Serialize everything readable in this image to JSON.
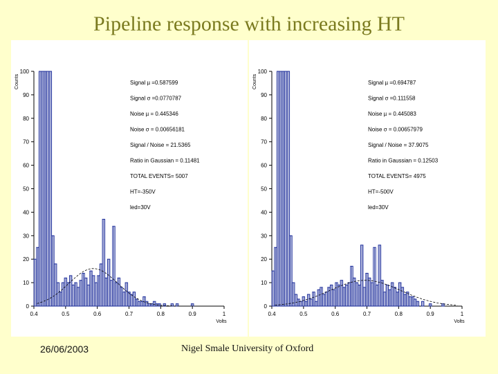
{
  "slide": {
    "title": "Pipeline response with increasing HT",
    "date": "26/06/2003",
    "author": "Nigel Smale University of Oxford"
  },
  "colors": {
    "background": "#ffffcc",
    "title": "#7a7a1f",
    "histogram": "#1a2b99",
    "fit": "#000000"
  },
  "chart_data": [
    {
      "type": "bar",
      "title": "",
      "xlabel": "Volts",
      "ylabel": "Counts",
      "xlim": [
        0.4,
        1.0
      ],
      "ylim": [
        0,
        100
      ],
      "xticks": [
        "0.4",
        "0.5",
        "0.6",
        "0.7",
        "0.8",
        "0.9",
        "1"
      ],
      "yticks": [
        "0",
        "10",
        "20",
        "30",
        "40",
        "50",
        "60",
        "70",
        "80",
        "90",
        "100"
      ],
      "stats": [
        "Signal µ =0.587599",
        "Signal σ =0.0770787",
        "Noise µ = 0.445346",
        "Noise σ = 0.00656181",
        "Signal / Noise = 21.5365",
        "Ratio in Gaussian = 0.11481",
        "TOTAL EVENTS=      5007",
        "HT=-350V",
        "led=30V"
      ],
      "fit": {
        "mu": 0.5876,
        "sigma": 0.0771,
        "amp": 16
      },
      "x": [
        0.404,
        0.412,
        0.42,
        0.428,
        0.436,
        0.444,
        0.452,
        0.46,
        0.468,
        0.476,
        0.484,
        0.492,
        0.5,
        0.508,
        0.516,
        0.524,
        0.532,
        0.54,
        0.548,
        0.556,
        0.564,
        0.572,
        0.58,
        0.588,
        0.596,
        0.604,
        0.612,
        0.62,
        0.628,
        0.636,
        0.644,
        0.652,
        0.66,
        0.668,
        0.676,
        0.684,
        0.692,
        0.7,
        0.708,
        0.716,
        0.724,
        0.732,
        0.74,
        0.748,
        0.756,
        0.764,
        0.772,
        0.78,
        0.788,
        0.796,
        0.812,
        0.836,
        0.852,
        0.876,
        0.9
      ],
      "values": [
        20,
        25,
        100,
        100,
        100,
        100,
        100,
        30,
        18,
        10,
        6,
        10,
        12,
        10,
        13,
        9,
        10,
        8,
        11,
        14,
        12,
        9,
        15,
        13,
        10,
        13,
        18,
        37,
        12,
        20,
        11,
        34,
        10,
        12,
        8,
        6,
        10,
        6,
        5,
        6,
        3,
        2,
        2,
        4,
        2,
        1,
        1,
        2,
        1,
        1,
        1,
        1,
        1,
        0,
        1
      ]
    },
    {
      "type": "bar",
      "title": "",
      "xlabel": "Volts",
      "ylabel": "Counts",
      "xlim": [
        0.4,
        1.0
      ],
      "ylim": [
        0,
        100
      ],
      "xticks": [
        "0.4",
        "0.5",
        "0.6",
        "0.7",
        "0.8",
        "0.9",
        "1"
      ],
      "yticks": [
        "0",
        "10",
        "20",
        "30",
        "40",
        "50",
        "60",
        "70",
        "80",
        "90",
        "100"
      ],
      "stats": [
        "Signal µ =0.694787",
        "Signal σ =0.111558",
        "Noise µ = 0.445083",
        "Noise σ = 0.00657979",
        "Signal / Noise = 37.9075",
        "Ratio in Gaussian = 0.12503",
        "TOTAL EVENTS=      4975",
        "HT=-500V",
        "led=30V"
      ],
      "fit": {
        "mu": 0.6948,
        "sigma": 0.1116,
        "amp": 11
      },
      "x": [
        0.404,
        0.412,
        0.42,
        0.428,
        0.436,
        0.444,
        0.452,
        0.46,
        0.468,
        0.476,
        0.484,
        0.492,
        0.5,
        0.508,
        0.516,
        0.524,
        0.532,
        0.54,
        0.548,
        0.556,
        0.564,
        0.572,
        0.58,
        0.588,
        0.596,
        0.604,
        0.612,
        0.62,
        0.628,
        0.636,
        0.644,
        0.652,
        0.66,
        0.668,
        0.676,
        0.684,
        0.692,
        0.7,
        0.708,
        0.716,
        0.724,
        0.732,
        0.74,
        0.748,
        0.756,
        0.764,
        0.772,
        0.78,
        0.788,
        0.796,
        0.804,
        0.812,
        0.82,
        0.828,
        0.836,
        0.844,
        0.852,
        0.86,
        0.876,
        0.9,
        0.94
      ],
      "values": [
        15,
        25,
        100,
        100,
        100,
        100,
        100,
        30,
        10,
        5,
        3,
        2,
        4,
        2,
        5,
        3,
        6,
        2,
        7,
        8,
        5,
        6,
        8,
        9,
        7,
        10,
        9,
        11,
        8,
        9,
        10,
        17,
        12,
        10,
        9,
        26,
        8,
        14,
        12,
        10,
        25,
        9,
        26,
        11,
        6,
        9,
        7,
        10,
        8,
        6,
        10,
        8,
        5,
        6,
        4,
        4,
        3,
        2,
        2,
        1,
        1
      ]
    }
  ]
}
